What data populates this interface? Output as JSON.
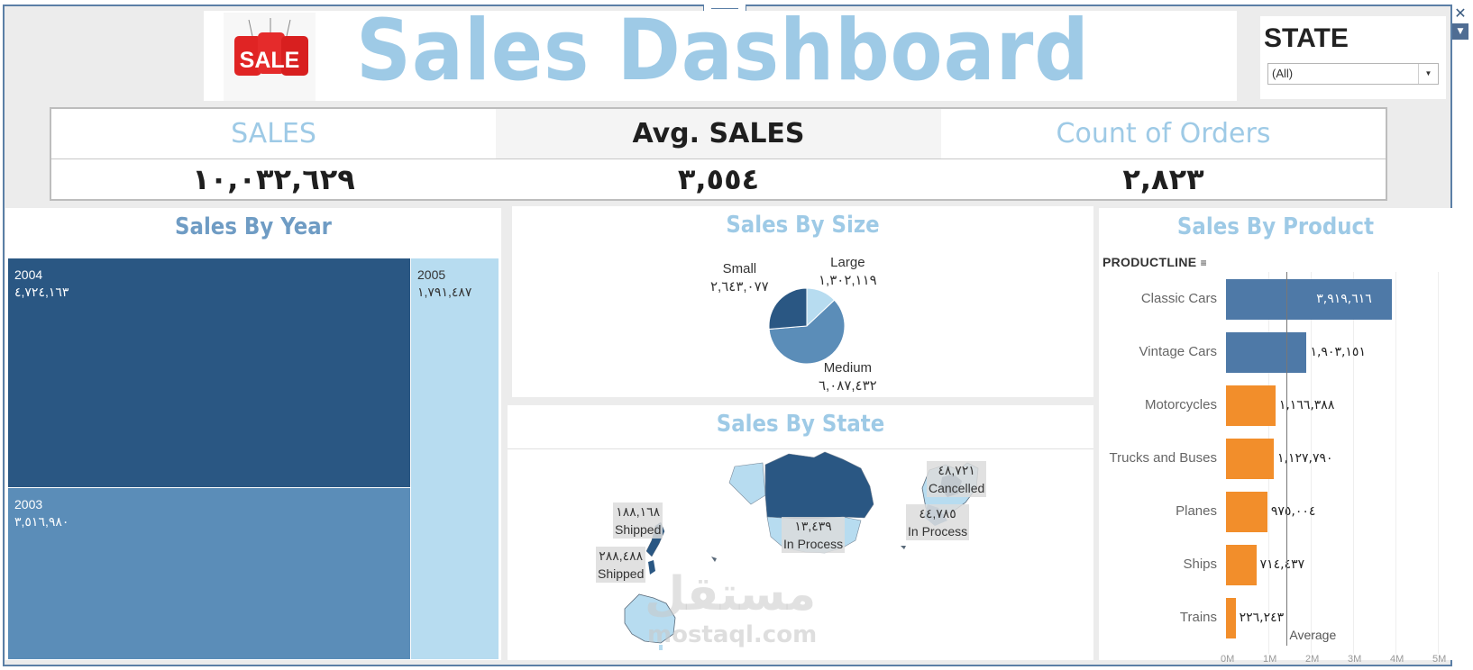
{
  "header": {
    "title": "Sales Dashboard",
    "logo_text": "SALE"
  },
  "filter": {
    "label": "STATE",
    "selected": "(All)"
  },
  "kpis": [
    {
      "label": "SALES",
      "value": "١٠,٠٣٢,٦٢٩",
      "color": "#9ecae6",
      "bg": "#ffffff"
    },
    {
      "label": "Avg. SALES",
      "value": "٣,٥٥٤",
      "color": "#1f1f1f",
      "bg": "#f4f4f4"
    },
    {
      "label": "Count of Orders",
      "value": "٢,٨٢٣",
      "color": "#9ecae6",
      "bg": "#ffffff"
    }
  ],
  "sales_by_year": {
    "title": "Sales By Year",
    "cells": [
      {
        "year": "2004",
        "value": "٤,٧٢٤,١٦٣",
        "color": "#2a5783"
      },
      {
        "year": "2003",
        "value": "٣,٥١٦,٩٨٠",
        "color": "#5b8db8"
      },
      {
        "year": "2005",
        "value": "١,٧٩١,٤٨٧",
        "color": "#b7dcf0"
      }
    ]
  },
  "sales_by_size": {
    "title": "Sales By Size",
    "slices": [
      {
        "name": "Large",
        "value": "١,٣٠٢,١١٩",
        "amount": 1302119,
        "color": "#b7dcf0"
      },
      {
        "name": "Medium",
        "value": "٦,٠٨٧,٤٣٢",
        "amount": 6087432,
        "color": "#5b8db8"
      },
      {
        "name": "Small",
        "value": "٢,٦٤٣,٠٧٧",
        "amount": 2643077,
        "color": "#2a5783"
      }
    ]
  },
  "sales_by_state": {
    "title": "Sales By State",
    "tags": [
      {
        "value": "١٨٨,١٦٨",
        "status": "Shipped"
      },
      {
        "value": "٢٨٨,٤٨٨",
        "status": "Shipped"
      },
      {
        "value": "١٣,٤٣٩",
        "status": "In Process"
      },
      {
        "value": "٤٨,٧٢١",
        "status": "Cancelled"
      },
      {
        "value": "٤٤,٧٨٥",
        "status": "In Process"
      }
    ],
    "watermark": "مستقل",
    "watermark_url": "mostaql.com"
  },
  "sales_by_product": {
    "title": "Sales By Product",
    "column_header": "PRODUCTLINE",
    "average_label": "Average",
    "axis_ticks": [
      "0M",
      "1M",
      "2M",
      "3M",
      "4M",
      "5M"
    ],
    "chart_data": {
      "type": "bar",
      "categories": [
        "Classic Cars",
        "Vintage Cars",
        "Motorcycles",
        "Trucks and Buses",
        "Planes",
        "Ships",
        "Trains"
      ],
      "values": [
        3919616,
        1903151,
        1166388,
        1127790,
        975004,
        714437,
        226243
      ],
      "labels": [
        "٣,٩١٩,٦١٦",
        "١,٩٠٣,١٥١",
        "١,١٦٦,٣٨٨",
        "١,١٢٧,٧٩٠",
        "٩٧٥,٠٠٤",
        "٧١٤,٤٣٧",
        "٢٢٦,٢٤٣"
      ],
      "colors": [
        "#4e79a7",
        "#4e79a7",
        "#f28e2b",
        "#f28e2b",
        "#f28e2b",
        "#f28e2b",
        "#f28e2b"
      ],
      "average": 1433233,
      "xlim": [
        0,
        5000000
      ]
    }
  }
}
